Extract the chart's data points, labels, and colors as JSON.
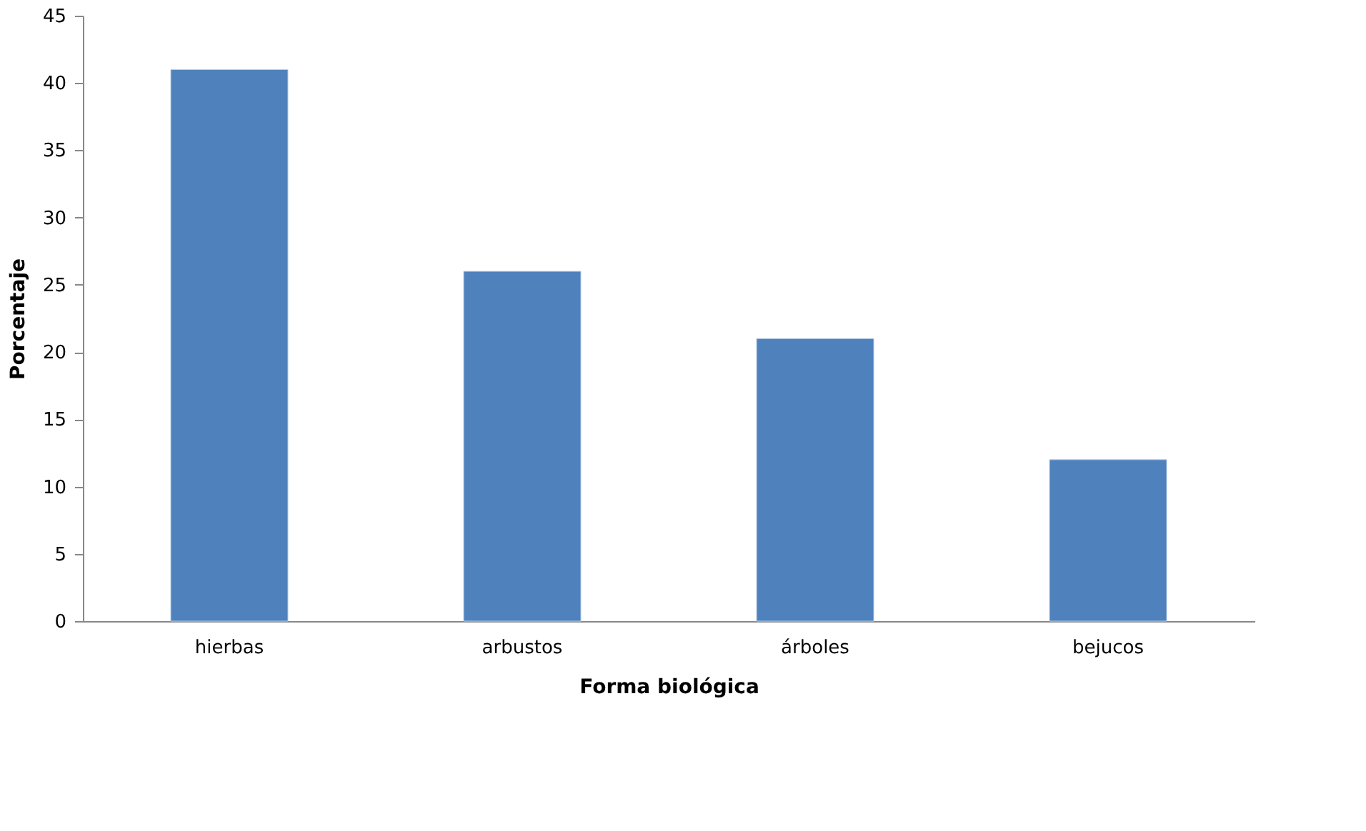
{
  "chart_data": {
    "type": "bar",
    "xlabel": "Forma biológica",
    "ylabel": "Porcentaje",
    "categories": [
      "hierbas",
      "arbustos",
      "árboles",
      "bejucos"
    ],
    "values": [
      41,
      26,
      21,
      12
    ],
    "color": "#4f81bd",
    "ylim": [
      0,
      45
    ],
    "yticks": [
      0,
      5,
      10,
      15,
      20,
      25,
      30,
      35,
      40,
      45
    ],
    "grid": false
  }
}
